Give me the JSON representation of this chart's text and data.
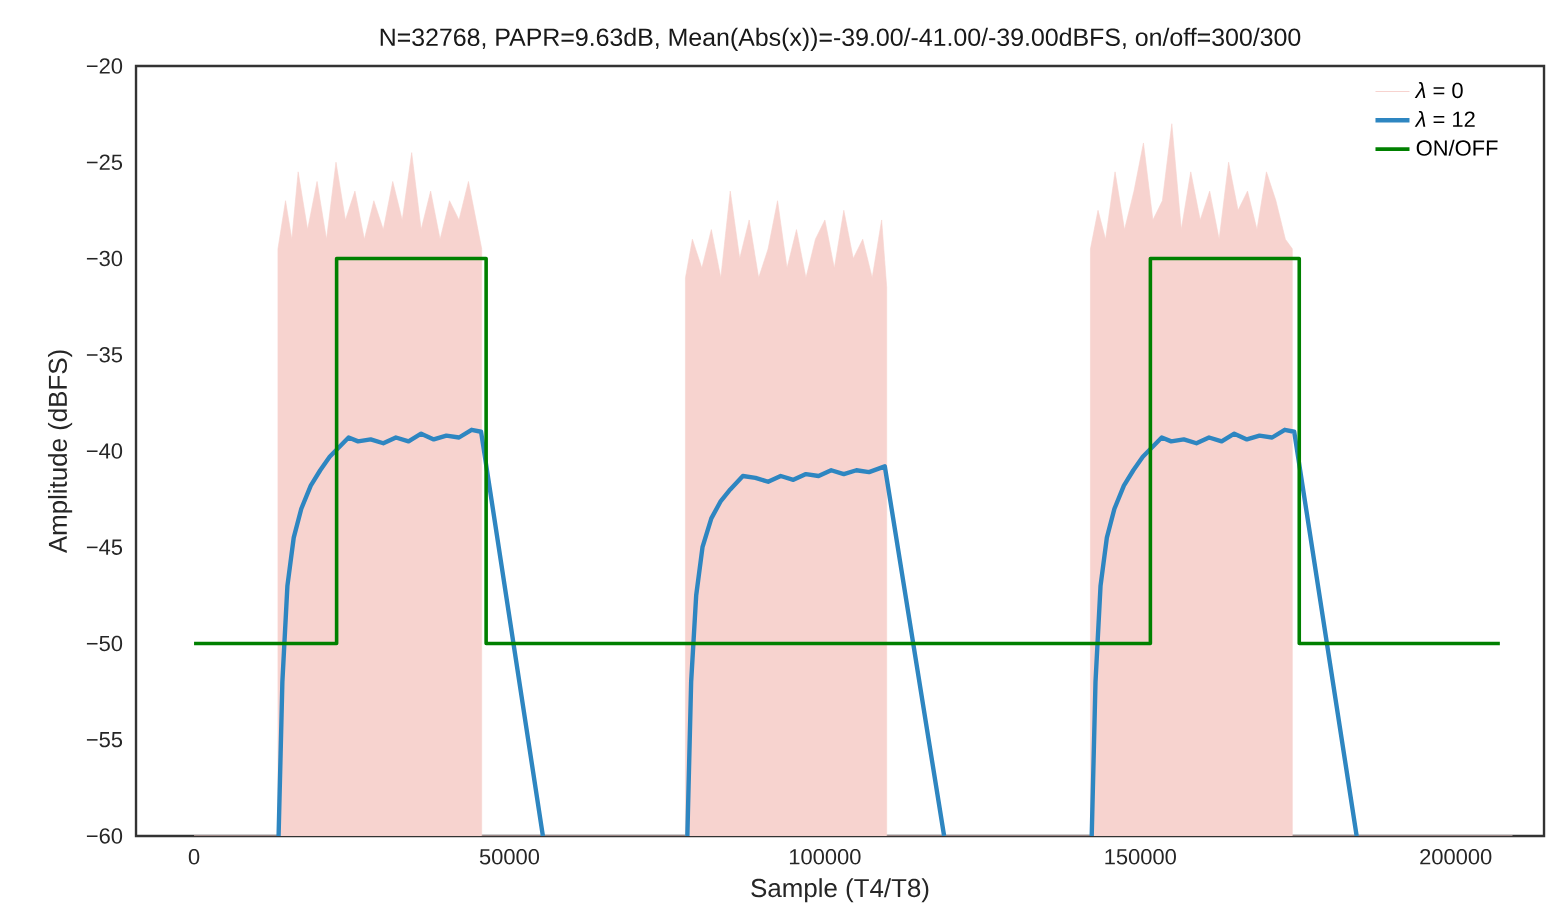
{
  "chart_data": {
    "type": "line",
    "title": "N=32768, PAPR=9.63dB, Mean(Abs(x))=-39.00/-41.00/-39.00dBFS, on/off=300/300",
    "xlabel": "Sample (T4/T8)",
    "ylabel": "Amplitude (dBFS)",
    "xlim": [
      -9200,
      214000
    ],
    "xticks": [
      0,
      50000,
      100000,
      150000,
      200000
    ],
    "ylim": [
      -60,
      -20
    ],
    "yticks": [
      {
        "value": -60,
        "label": "−60"
      },
      {
        "value": -55,
        "label": "−55"
      },
      {
        "value": -50,
        "label": "−50"
      },
      {
        "value": -45,
        "label": "−45"
      },
      {
        "value": -40,
        "label": "−40"
      },
      {
        "value": -35,
        "label": "−35"
      },
      {
        "value": -30,
        "label": "−30"
      },
      {
        "value": -25,
        "label": "−25"
      },
      {
        "value": -20,
        "label": "−20"
      }
    ],
    "legend": "top right",
    "series": [
      {
        "name": "*λ* = 0",
        "type": "area",
        "color": "#f7d3cf",
        "x": [
          0,
          13300,
          13300,
          14500,
          15500,
          16500,
          18000,
          19500,
          21000,
          22500,
          24000,
          25500,
          27000,
          28500,
          30000,
          31500,
          33000,
          34500,
          36000,
          37500,
          39000,
          40500,
          42000,
          43500,
          45000,
          45600,
          45600,
          77900,
          77900,
          79000,
          80500,
          82000,
          83500,
          85000,
          86500,
          88000,
          89500,
          91000,
          92500,
          94000,
          95500,
          97000,
          98500,
          100000,
          101500,
          103000,
          104500,
          106000,
          107500,
          109000,
          109800,
          109800,
          142100,
          142100,
          143300,
          144500,
          146000,
          147500,
          149000,
          150500,
          152000,
          153500,
          155000,
          156500,
          158000,
          159500,
          161000,
          162500,
          164000,
          165500,
          167000,
          168500,
          170000,
          171500,
          173000,
          174100,
          174100,
          209000
        ],
        "values": [
          -60,
          -60,
          -29.5,
          -27,
          -29,
          -25.5,
          -28.5,
          -26,
          -29,
          -25,
          -28,
          -26.5,
          -29,
          -27,
          -28.5,
          -26,
          -28,
          -24.5,
          -28.5,
          -26.5,
          -29,
          -27,
          -28,
          -26,
          -28.5,
          -29.5,
          -60,
          -60,
          -31,
          -29,
          -30.5,
          -28.5,
          -31,
          -26.5,
          -30,
          -28,
          -31,
          -29.5,
          -27,
          -30.5,
          -28.5,
          -31,
          -29,
          -28,
          -30.5,
          -27.5,
          -30,
          -29,
          -31,
          -28,
          -31.5,
          -60,
          -60,
          -29.5,
          -27.5,
          -29,
          -25.5,
          -28.5,
          -26.5,
          -24,
          -28,
          -27,
          -23,
          -28.5,
          -25.5,
          -28,
          -26.5,
          -29,
          -25,
          -27.5,
          -26.5,
          -28.5,
          -25.5,
          -27,
          -29,
          -29.5,
          -60,
          -60
        ]
      },
      {
        "name": "*λ* = 12",
        "type": "line",
        "color": "#2e86c1",
        "x": [
          13400,
          14000,
          14800,
          15800,
          17000,
          18500,
          20000,
          21500,
          23000,
          24500,
          26000,
          28000,
          30000,
          32000,
          34000,
          36000,
          38000,
          40000,
          42000,
          44000,
          45500,
          55300,
          66000,
          78200,
          78800,
          79600,
          80600,
          82000,
          83500,
          85000,
          87000,
          89000,
          91000,
          93000,
          95000,
          97000,
          99000,
          101000,
          103000,
          105000,
          107000,
          109500,
          118900,
          130000,
          142300,
          142900,
          143700,
          144700,
          145900,
          147400,
          148900,
          150400,
          151900,
          153400,
          154900,
          156900,
          158900,
          160900,
          162900,
          164900,
          166900,
          168900,
          170900,
          172900,
          174400,
          184300
        ],
        "values": [
          -60,
          -52,
          -47,
          -44.5,
          -43,
          -41.8,
          -41,
          -40.3,
          -39.8,
          -39.3,
          -39.5,
          -39.4,
          -39.6,
          -39.3,
          -39.5,
          -39.1,
          -39.4,
          -39.2,
          -39.3,
          -38.9,
          -39.0,
          -60,
          null,
          -60,
          -52,
          -47.5,
          -45,
          -43.5,
          -42.6,
          -42,
          -41.3,
          -41.4,
          -41.6,
          -41.3,
          -41.5,
          -41.2,
          -41.3,
          -41.0,
          -41.2,
          -41.0,
          -41.1,
          -40.8,
          -60,
          null,
          -60,
          -52,
          -47,
          -44.5,
          -43,
          -41.8,
          -41,
          -40.3,
          -39.8,
          -39.3,
          -39.5,
          -39.4,
          -39.6,
          -39.3,
          -39.5,
          -39.1,
          -39.4,
          -39.2,
          -39.3,
          -38.9,
          -39.0,
          -60
        ]
      },
      {
        "name": "ON/OFF",
        "type": "line",
        "color": "#008000",
        "x": [
          0,
          22600,
          22600,
          46300,
          46300,
          151600,
          151600,
          175200,
          175200,
          207000
        ],
        "values": [
          -50,
          -50,
          -30,
          -30,
          -50,
          -50,
          -30,
          -30,
          -50,
          -50
        ]
      }
    ]
  }
}
